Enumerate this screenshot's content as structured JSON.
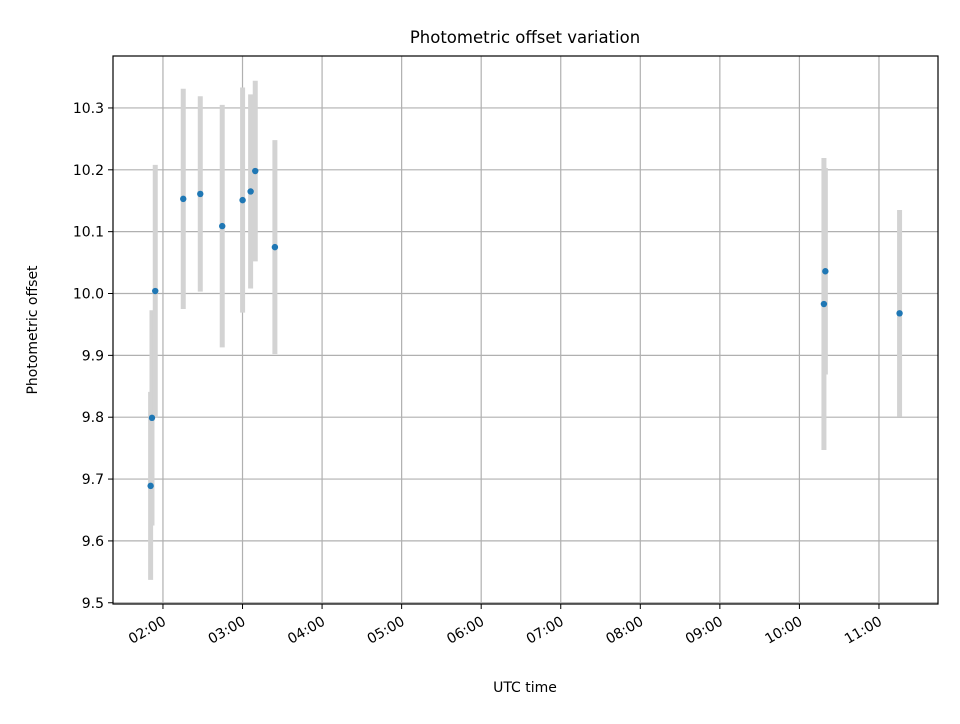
{
  "chart_data": {
    "type": "scatter",
    "title": "Photometric offset variation",
    "xlabel": "UTC time",
    "ylabel": "Photometric offset",
    "xlim_hours": [
      1.372,
      11.742
    ],
    "ylim": [
      9.498,
      10.384
    ],
    "grid": true,
    "x_ticks": [
      {
        "hour": 2,
        "label": "02:00"
      },
      {
        "hour": 3,
        "label": "03:00"
      },
      {
        "hour": 4,
        "label": "04:00"
      },
      {
        "hour": 5,
        "label": "05:00"
      },
      {
        "hour": 6,
        "label": "06:00"
      },
      {
        "hour": 7,
        "label": "07:00"
      },
      {
        "hour": 8,
        "label": "08:00"
      },
      {
        "hour": 9,
        "label": "09:00"
      },
      {
        "hour": 10,
        "label": "10:00"
      },
      {
        "hour": 11,
        "label": "11:00"
      }
    ],
    "y_ticks": [
      {
        "value": 9.5,
        "label": "9.5"
      },
      {
        "value": 9.6,
        "label": "9.6"
      },
      {
        "value": 9.7,
        "label": "9.7"
      },
      {
        "value": 9.8,
        "label": "9.8"
      },
      {
        "value": 9.9,
        "label": "9.9"
      },
      {
        "value": 10.0,
        "label": "10.0"
      },
      {
        "value": 10.1,
        "label": "10.1"
      },
      {
        "value": 10.2,
        "label": "10.2"
      },
      {
        "value": 10.3,
        "label": "10.3"
      }
    ],
    "marker_color": "#1f77b4",
    "errorbar_color": "#d3d3d3",
    "points": [
      {
        "time_hours": 1.845,
        "y": 9.689,
        "err": 0.152
      },
      {
        "time_hours": 1.862,
        "y": 9.799,
        "err": 0.174
      },
      {
        "time_hours": 1.903,
        "y": 10.004,
        "err": 0.204
      },
      {
        "time_hours": 2.255,
        "y": 10.153,
        "err": 0.178
      },
      {
        "time_hours": 2.469,
        "y": 10.161,
        "err": 0.158
      },
      {
        "time_hours": 2.745,
        "y": 10.109,
        "err": 0.196
      },
      {
        "time_hours": 3.001,
        "y": 10.151,
        "err": 0.182
      },
      {
        "time_hours": 3.102,
        "y": 10.165,
        "err": 0.157
      },
      {
        "time_hours": 3.16,
        "y": 10.198,
        "err": 0.146
      },
      {
        "time_hours": 3.407,
        "y": 10.075,
        "err": 0.173
      },
      {
        "time_hours": 10.308,
        "y": 9.983,
        "err": 0.236
      },
      {
        "time_hours": 10.326,
        "y": 10.036,
        "err": 0.167
      },
      {
        "time_hours": 11.259,
        "y": 9.968,
        "err": 0.167
      }
    ]
  }
}
